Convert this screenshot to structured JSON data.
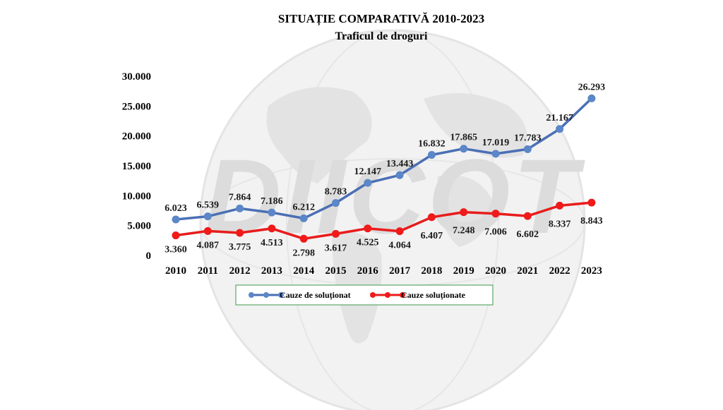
{
  "chart_data": {
    "type": "line",
    "title": "SITUAȚIE COMPARATIVĂ 2010-2023",
    "subtitle": "Traficul de droguri",
    "categories": [
      "2010",
      "2011",
      "2012",
      "2013",
      "2014",
      "2015",
      "2016",
      "2017",
      "2018",
      "2019",
      "2020",
      "2021",
      "2022",
      "2023"
    ],
    "ylim": [
      0,
      30000
    ],
    "yticks": [
      {
        "value": 0,
        "label": "0"
      },
      {
        "value": 5000,
        "label": "5.000"
      },
      {
        "value": 10000,
        "label": "10.000"
      },
      {
        "value": 15000,
        "label": "15.000"
      },
      {
        "value": 20000,
        "label": "20.000"
      },
      {
        "value": 25000,
        "label": "25.000"
      },
      {
        "value": 30000,
        "label": "30.000"
      }
    ],
    "grid": false,
    "legend": "bottom",
    "watermark": "DIICOT",
    "series": [
      {
        "name": "Cauze de soluționat",
        "color": "#4a6fb5",
        "marker_color": "#5b86c8",
        "values": [
          6023,
          6539,
          7864,
          7186,
          6212,
          8783,
          12147,
          13443,
          16832,
          17865,
          17019,
          17783,
          21167,
          26293
        ],
        "labels": [
          "6.023",
          "6.539",
          "7.864",
          "7.186",
          "6.212",
          "8.783",
          "12.147",
          "13.443",
          "16.832",
          "17.865",
          "17.019",
          "17.783",
          "21.167",
          "26.293"
        ]
      },
      {
        "name": "Cauze soluționate",
        "color": "#e81c1c",
        "marker_color": "#f01a1a",
        "values": [
          3360,
          4087,
          3775,
          4513,
          2798,
          3617,
          4525,
          4064,
          6407,
          7248,
          7006,
          6602,
          8337,
          8843
        ],
        "labels": [
          "3.360",
          "4.087",
          "3.775",
          "4.513",
          "2.798",
          "3.617",
          "4.525",
          "4.064",
          "6.407",
          "7.248",
          "7.006",
          "6.602",
          "8.337",
          "8.843"
        ]
      }
    ]
  }
}
